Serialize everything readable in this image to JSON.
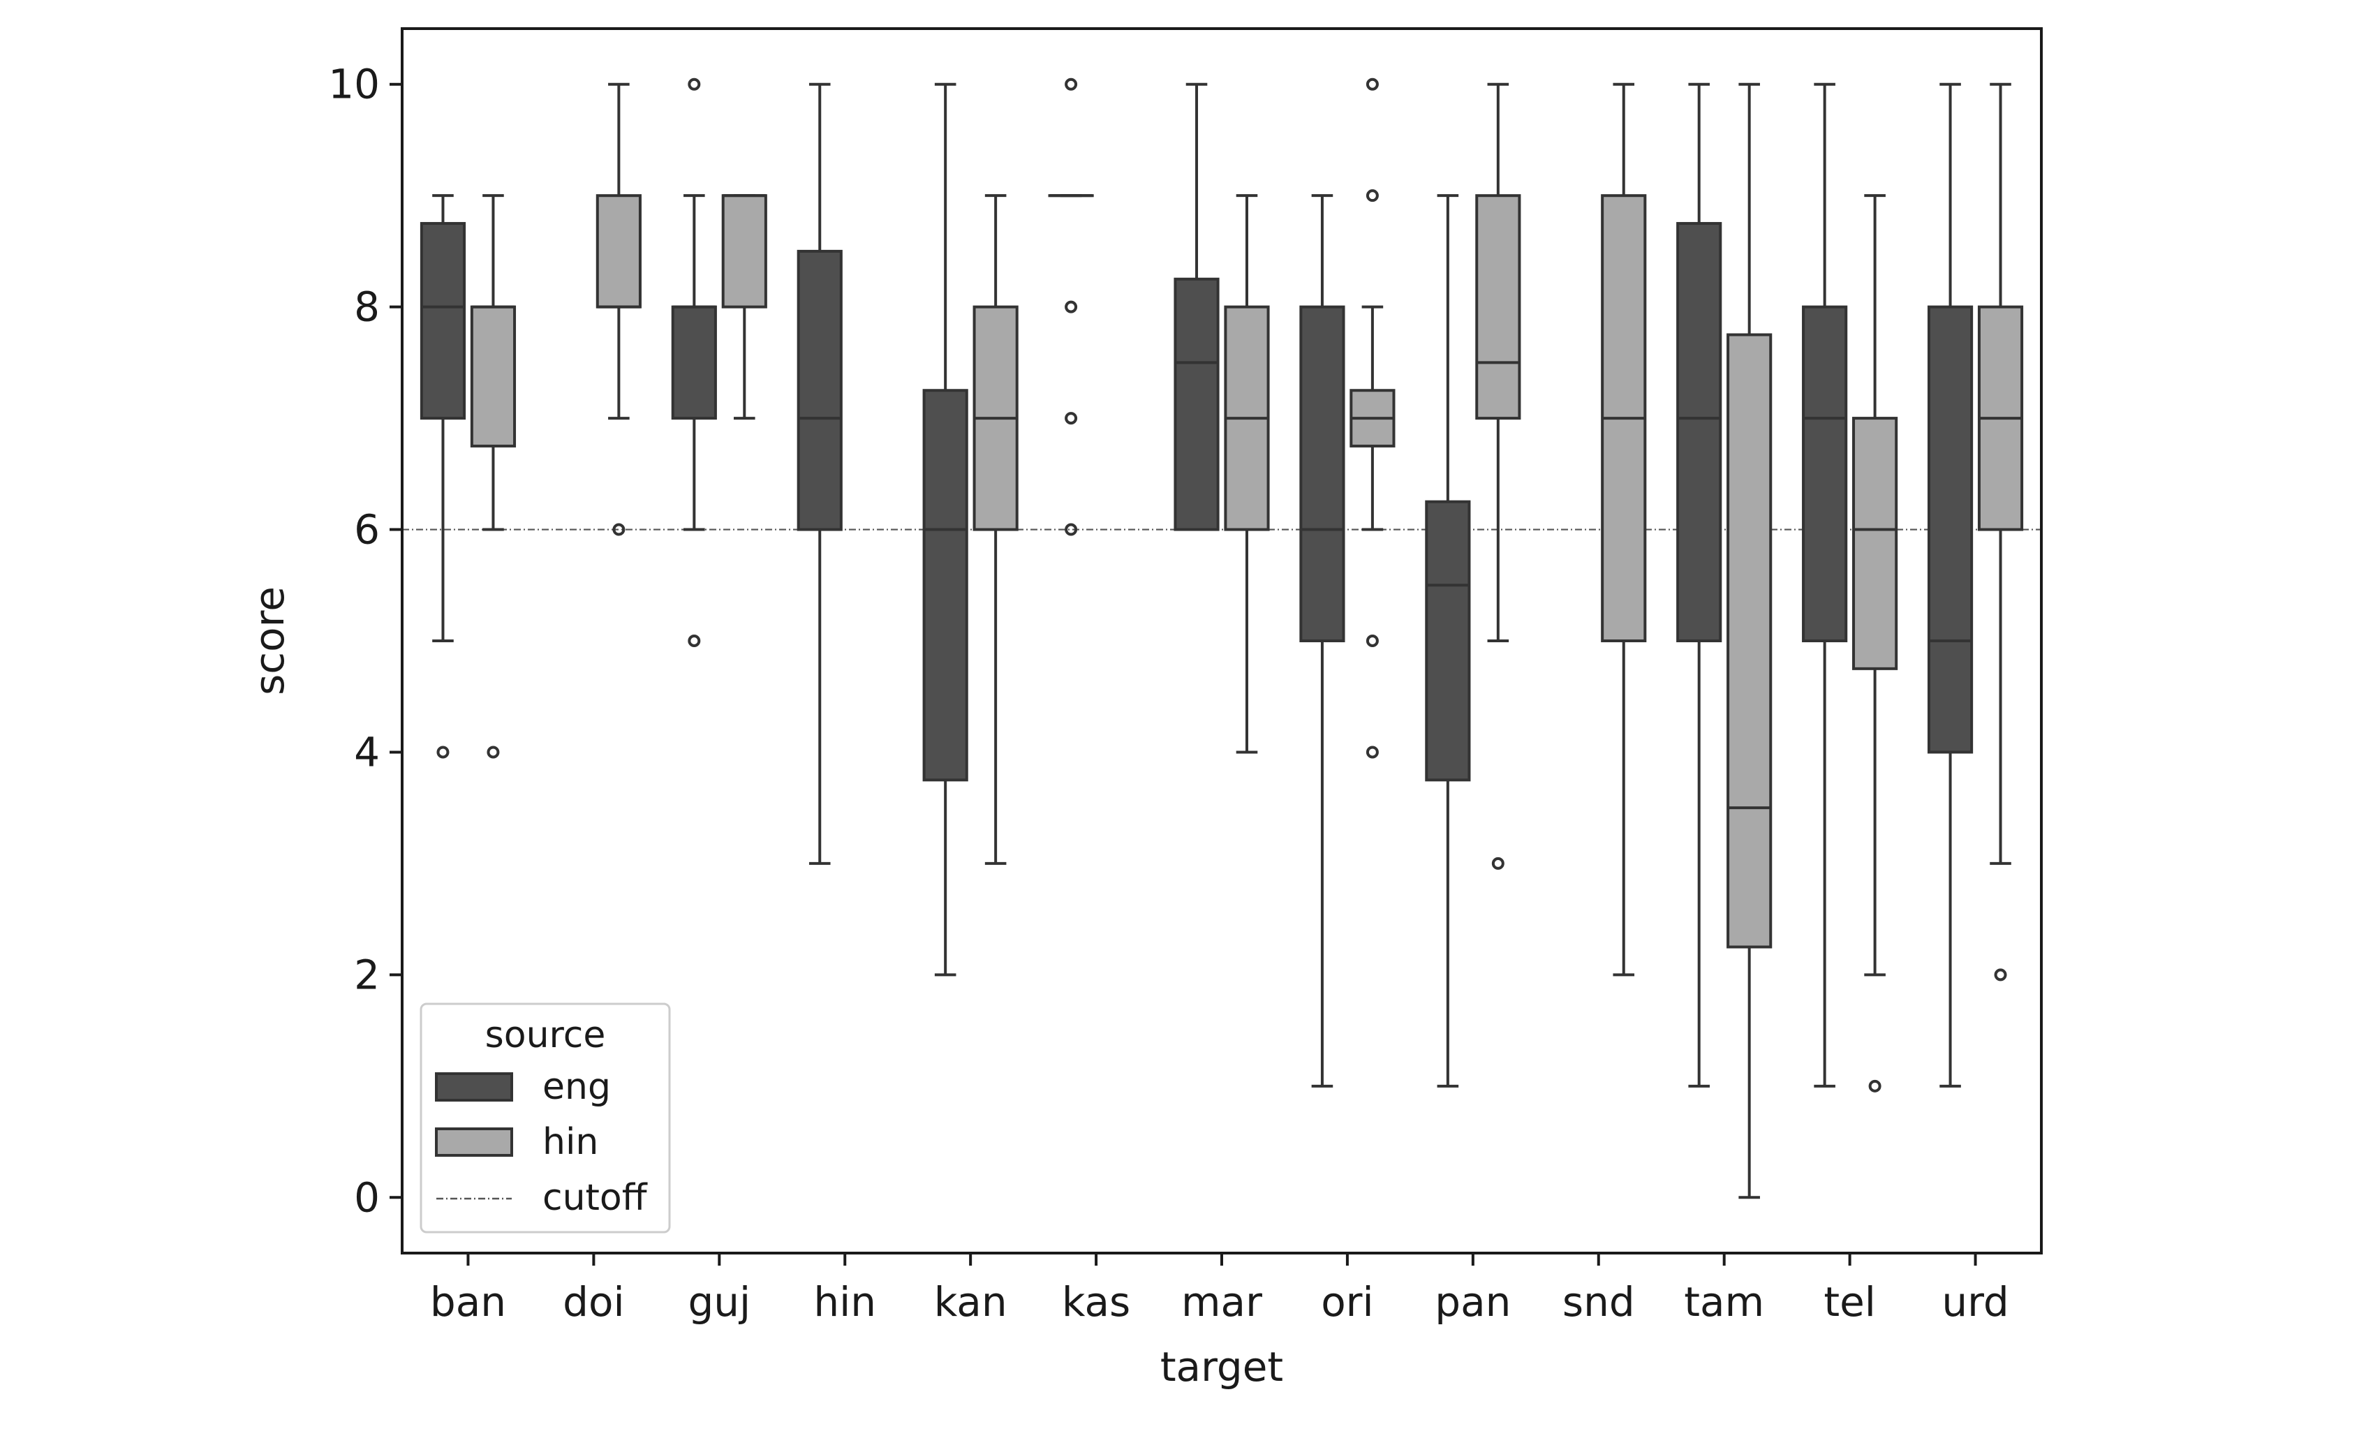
{
  "chart_data": {
    "type": "box",
    "xlabel": "target",
    "ylabel": "score",
    "ylim": [
      -0.5,
      10.5
    ],
    "yticks": [
      0,
      2,
      4,
      6,
      8,
      10
    ],
    "categories": [
      "ban",
      "doi",
      "guj",
      "hin",
      "kan",
      "kas",
      "mar",
      "ori",
      "pan",
      "snd",
      "tam",
      "tel",
      "urd"
    ],
    "cutoff": 6,
    "legend": {
      "title": "source",
      "location": "lower-left",
      "entries": [
        "eng",
        "hin",
        "cutoff"
      ]
    },
    "colors": {
      "eng": "#4f4f4f",
      "hin": "#a9a9a9",
      "edge": "#333333",
      "cutoff": "#555555"
    },
    "series": [
      {
        "name": "eng",
        "boxes": [
          {
            "category": "ban",
            "whislo": 5,
            "q1": 7,
            "med": 8,
            "q3": 8.75,
            "whishi": 9,
            "fliers": [
              4
            ]
          },
          {
            "category": "guj",
            "whislo": 6,
            "q1": 7,
            "med": 8,
            "q3": 8,
            "whishi": 9,
            "fliers": [
              10,
              5
            ]
          },
          {
            "category": "hin",
            "whislo": 3,
            "q1": 6,
            "med": 7,
            "q3": 8.5,
            "whishi": 10,
            "fliers": []
          },
          {
            "category": "kan",
            "whislo": 2,
            "q1": 3.75,
            "med": 6,
            "q3": 7.25,
            "whishi": 10,
            "fliers": []
          },
          {
            "category": "kas",
            "whislo": 9,
            "q1": 9,
            "med": 9,
            "q3": 9,
            "whishi": 9,
            "fliers": [
              10,
              8,
              7,
              6
            ]
          },
          {
            "category": "mar",
            "whislo": 6,
            "q1": 6,
            "med": 7.5,
            "q3": 8.25,
            "whishi": 10,
            "fliers": []
          },
          {
            "category": "ori",
            "whislo": 1,
            "q1": 5,
            "med": 6,
            "q3": 8,
            "whishi": 9,
            "fliers": []
          },
          {
            "category": "pan",
            "whislo": 1,
            "q1": 3.75,
            "med": 5.5,
            "q3": 6.25,
            "whishi": 9,
            "fliers": []
          },
          {
            "category": "tam",
            "whislo": 1,
            "q1": 5,
            "med": 7,
            "q3": 8.75,
            "whishi": 10,
            "fliers": []
          },
          {
            "category": "tel",
            "whislo": 1,
            "q1": 5,
            "med": 7,
            "q3": 8,
            "whishi": 10,
            "fliers": []
          },
          {
            "category": "urd",
            "whislo": 1,
            "q1": 4,
            "med": 5,
            "q3": 8,
            "whishi": 10,
            "fliers": []
          }
        ]
      },
      {
        "name": "hin",
        "boxes": [
          {
            "category": "ban",
            "whislo": 6,
            "q1": 6.75,
            "med": 8,
            "q3": 8,
            "whishi": 9,
            "fliers": [
              4
            ]
          },
          {
            "category": "doi",
            "whislo": 7,
            "q1": 8,
            "med": 8,
            "q3": 9,
            "whishi": 10,
            "fliers": [
              6
            ]
          },
          {
            "category": "guj",
            "whislo": 7,
            "q1": 8,
            "med": 9,
            "q3": 9,
            "whishi": 9,
            "fliers": []
          },
          {
            "category": "kan",
            "whislo": 3,
            "q1": 6,
            "med": 7,
            "q3": 8,
            "whishi": 9,
            "fliers": []
          },
          {
            "category": "mar",
            "whislo": 4,
            "q1": 6,
            "med": 7,
            "q3": 8,
            "whishi": 9,
            "fliers": []
          },
          {
            "category": "ori",
            "whislo": 6,
            "q1": 6.75,
            "med": 7,
            "q3": 7.25,
            "whishi": 8,
            "fliers": [
              10,
              9,
              5,
              4
            ]
          },
          {
            "category": "pan",
            "whislo": 5,
            "q1": 7,
            "med": 7.5,
            "q3": 9,
            "whishi": 10,
            "fliers": [
              3
            ]
          },
          {
            "category": "snd",
            "whislo": 2,
            "q1": 5,
            "med": 7,
            "q3": 9,
            "whishi": 10,
            "fliers": []
          },
          {
            "category": "tam",
            "whislo": 0,
            "q1": 2.25,
            "med": 3.5,
            "q3": 7.75,
            "whishi": 10,
            "fliers": []
          },
          {
            "category": "tel",
            "whislo": 2,
            "q1": 4.75,
            "med": 6,
            "q3": 7,
            "whishi": 9,
            "fliers": [
              1
            ]
          },
          {
            "category": "urd",
            "whislo": 3,
            "q1": 6,
            "med": 7,
            "q3": 8,
            "whishi": 10,
            "fliers": [
              2
            ]
          }
        ]
      }
    ]
  }
}
